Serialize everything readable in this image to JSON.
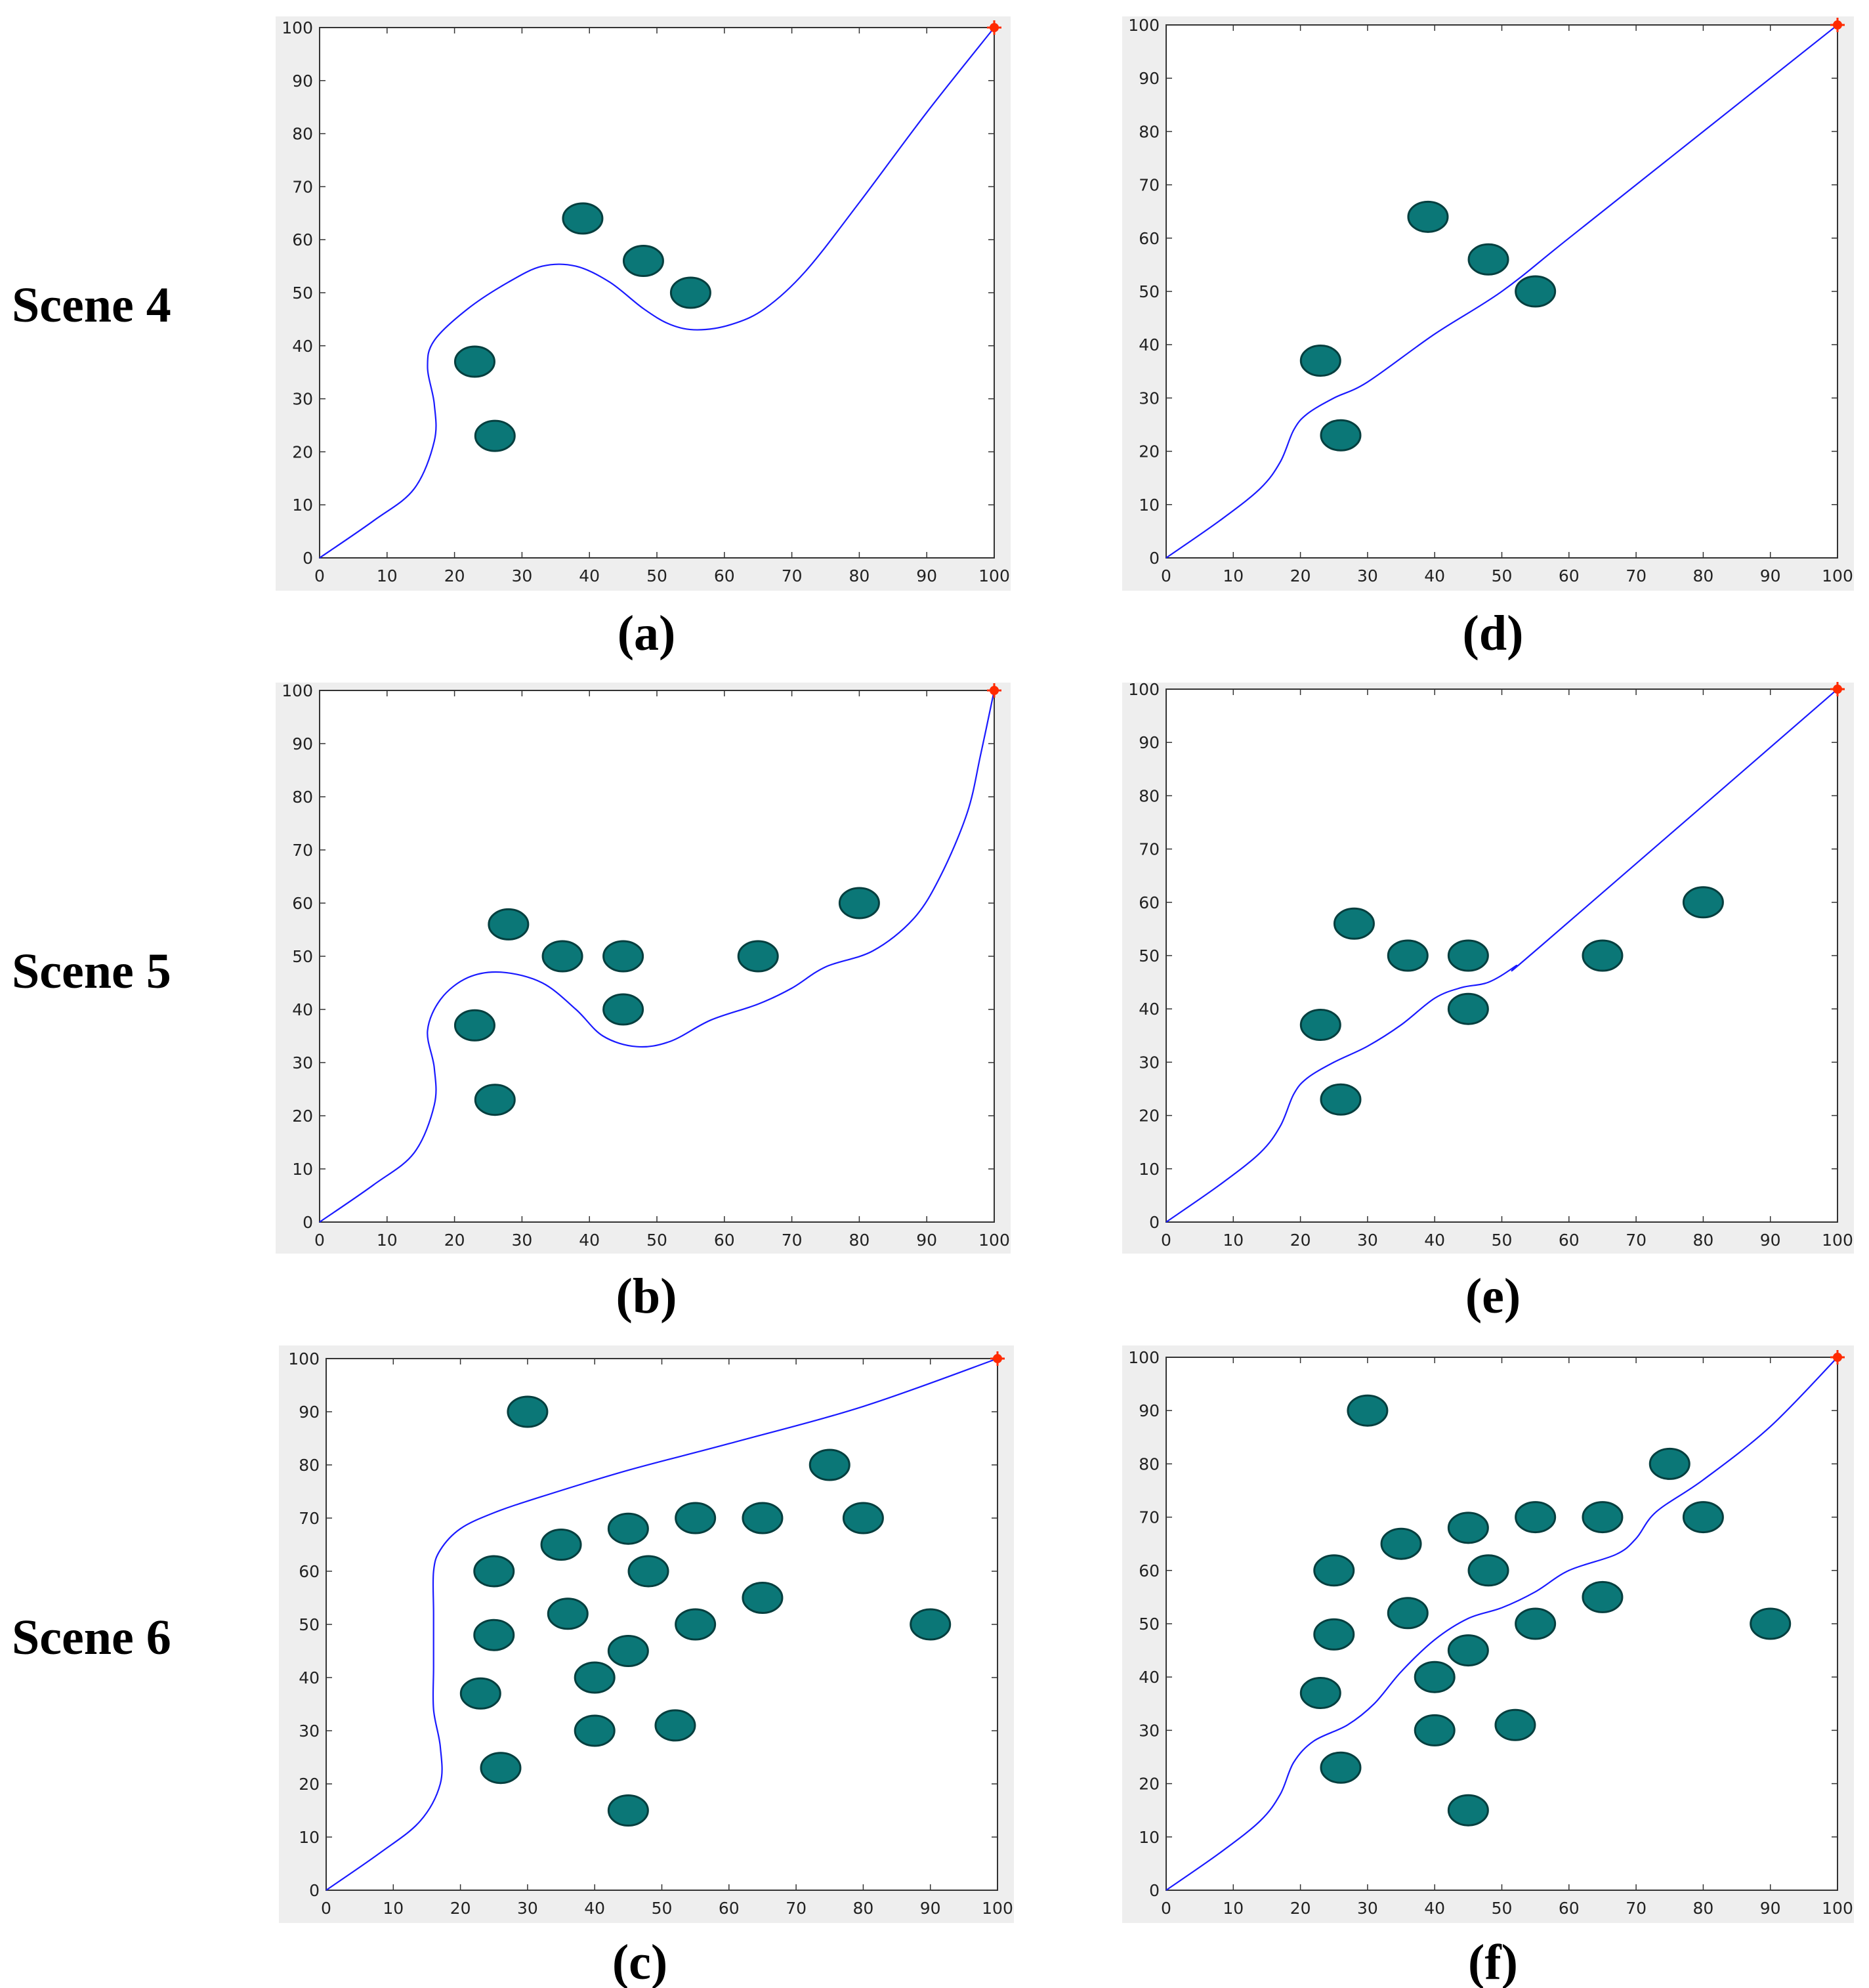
{
  "scene_labels": [
    "Scene 4",
    "Scene 5",
    "Scene 6"
  ],
  "colors": {
    "obstacle": "#0b7777",
    "obstacle_edge": "#063f3f",
    "path": "#1a1aff",
    "goal": "#ff2a00",
    "frame_bg": "#eeeeee",
    "axes_bg": "#ffffff"
  },
  "chart_data": [
    {
      "type": "scatter",
      "caption": "(a)",
      "scene": "Scene 4",
      "xlim": [
        0,
        100
      ],
      "ylim": [
        0,
        100
      ],
      "xticks": [
        0,
        10,
        20,
        30,
        40,
        50,
        60,
        70,
        80,
        90,
        100
      ],
      "yticks": [
        0,
        10,
        20,
        30,
        40,
        50,
        60,
        70,
        80,
        90,
        100
      ],
      "obstacles": [
        [
          23,
          37
        ],
        [
          26,
          23
        ],
        [
          39,
          64
        ],
        [
          48,
          56
        ],
        [
          55,
          50
        ]
      ],
      "path": [
        [
          0,
          0
        ],
        [
          8,
          7
        ],
        [
          14,
          13
        ],
        [
          17,
          22
        ],
        [
          17,
          29
        ],
        [
          16,
          36
        ],
        [
          17,
          41
        ],
        [
          22,
          47
        ],
        [
          28,
          52
        ],
        [
          33,
          55
        ],
        [
          38,
          55
        ],
        [
          43,
          52
        ],
        [
          48,
          47
        ],
        [
          52,
          44
        ],
        [
          56,
          43
        ],
        [
          61,
          44
        ],
        [
          66,
          47
        ],
        [
          72,
          54
        ],
        [
          80,
          67
        ],
        [
          90,
          84
        ],
        [
          100,
          100
        ]
      ],
      "start": [
        0,
        0
      ],
      "goal": [
        100,
        100
      ]
    },
    {
      "type": "scatter",
      "caption": "(b)",
      "scene": "Scene 5",
      "xlim": [
        0,
        100
      ],
      "ylim": [
        0,
        100
      ],
      "xticks": [
        0,
        10,
        20,
        30,
        40,
        50,
        60,
        70,
        80,
        90,
        100
      ],
      "yticks": [
        0,
        10,
        20,
        30,
        40,
        50,
        60,
        70,
        80,
        90,
        100
      ],
      "obstacles": [
        [
          23,
          37
        ],
        [
          26,
          23
        ],
        [
          28,
          56
        ],
        [
          36,
          50
        ],
        [
          45,
          50
        ],
        [
          45,
          40
        ],
        [
          65,
          50
        ],
        [
          80,
          60
        ]
      ],
      "path": [
        [
          0,
          0
        ],
        [
          8,
          7
        ],
        [
          14,
          13
        ],
        [
          17,
          22
        ],
        [
          17,
          29
        ],
        [
          16,
          36
        ],
        [
          18,
          42
        ],
        [
          22,
          46
        ],
        [
          27,
          47
        ],
        [
          33,
          45
        ],
        [
          38,
          40
        ],
        [
          42,
          35
        ],
        [
          47,
          33
        ],
        [
          52,
          34
        ],
        [
          58,
          38
        ],
        [
          65,
          41
        ],
        [
          70,
          44
        ],
        [
          75,
          48
        ],
        [
          82,
          51
        ],
        [
          88,
          57
        ],
        [
          92,
          65
        ],
        [
          96,
          77
        ],
        [
          98,
          88
        ],
        [
          100,
          100
        ]
      ],
      "start": [
        0,
        0
      ],
      "goal": [
        100,
        100
      ]
    },
    {
      "type": "scatter",
      "caption": "(c)",
      "scene": "Scene 6",
      "xlim": [
        0,
        100
      ],
      "ylim": [
        0,
        100
      ],
      "xticks": [
        0,
        10,
        20,
        30,
        40,
        50,
        60,
        70,
        80,
        90,
        100
      ],
      "yticks": [
        0,
        10,
        20,
        30,
        40,
        50,
        60,
        70,
        80,
        90,
        100
      ],
      "obstacles": [
        [
          30,
          90
        ],
        [
          75,
          80
        ],
        [
          45,
          68
        ],
        [
          55,
          70
        ],
        [
          65,
          70
        ],
        [
          80,
          70
        ],
        [
          25,
          60
        ],
        [
          35,
          65
        ],
        [
          48,
          60
        ],
        [
          36,
          52
        ],
        [
          25,
          48
        ],
        [
          55,
          50
        ],
        [
          65,
          55
        ],
        [
          90,
          50
        ],
        [
          23,
          37
        ],
        [
          40,
          40
        ],
        [
          45,
          45
        ],
        [
          40,
          30
        ],
        [
          52,
          31
        ],
        [
          26,
          23
        ],
        [
          45,
          15
        ]
      ],
      "path": [
        [
          0,
          0
        ],
        [
          8,
          7
        ],
        [
          14,
          13
        ],
        [
          17,
          20
        ],
        [
          17,
          27
        ],
        [
          16,
          34
        ],
        [
          16,
          42
        ],
        [
          16,
          52
        ],
        [
          16,
          60
        ],
        [
          17,
          64
        ],
        [
          20,
          68
        ],
        [
          25,
          71
        ],
        [
          32,
          74
        ],
        [
          45,
          79
        ],
        [
          60,
          84
        ],
        [
          80,
          91
        ],
        [
          100,
          100
        ]
      ],
      "start": [
        0,
        0
      ],
      "goal": [
        100,
        100
      ]
    },
    {
      "type": "scatter",
      "caption": "(d)",
      "scene": "Scene 4",
      "xlim": [
        0,
        100
      ],
      "ylim": [
        0,
        100
      ],
      "xticks": [
        0,
        10,
        20,
        30,
        40,
        50,
        60,
        70,
        80,
        90,
        100
      ],
      "yticks": [
        0,
        10,
        20,
        30,
        40,
        50,
        60,
        70,
        80,
        90,
        100
      ],
      "obstacles": [
        [
          23,
          37
        ],
        [
          26,
          23
        ],
        [
          39,
          64
        ],
        [
          48,
          56
        ],
        [
          55,
          50
        ]
      ],
      "path": [
        [
          0,
          0
        ],
        [
          8,
          7
        ],
        [
          14,
          13
        ],
        [
          17,
          18
        ],
        [
          19,
          24
        ],
        [
          21,
          27
        ],
        [
          25,
          30
        ],
        [
          30,
          33
        ],
        [
          40,
          42
        ],
        [
          50,
          50
        ],
        [
          60,
          60
        ],
        [
          80,
          80
        ],
        [
          100,
          100
        ]
      ],
      "start": [
        0,
        0
      ],
      "goal": [
        100,
        100
      ]
    },
    {
      "type": "scatter",
      "caption": "(e)",
      "scene": "Scene 5",
      "xlim": [
        0,
        100
      ],
      "ylim": [
        0,
        100
      ],
      "xticks": [
        0,
        10,
        20,
        30,
        40,
        50,
        60,
        70,
        80,
        90,
        100
      ],
      "yticks": [
        0,
        10,
        20,
        30,
        40,
        50,
        60,
        70,
        80,
        90,
        100
      ],
      "obstacles": [
        [
          23,
          37
        ],
        [
          26,
          23
        ],
        [
          28,
          56
        ],
        [
          36,
          50
        ],
        [
          45,
          50
        ],
        [
          45,
          40
        ],
        [
          65,
          50
        ],
        [
          80,
          60
        ]
      ],
      "path": [
        [
          0,
          0
        ],
        [
          8,
          7
        ],
        [
          14,
          13
        ],
        [
          17,
          18
        ],
        [
          19,
          24
        ],
        [
          21,
          27
        ],
        [
          25,
          30
        ],
        [
          30,
          33
        ],
        [
          35,
          37
        ],
        [
          40,
          42
        ],
        [
          44,
          44
        ],
        [
          48,
          45
        ],
        [
          52,
          48
        ],
        [
          56,
          52
        ],
        [
          100,
          100
        ]
      ],
      "start": [
        0,
        0
      ],
      "goal": [
        100,
        100
      ]
    },
    {
      "type": "scatter",
      "caption": "(f)",
      "scene": "Scene 6",
      "xlim": [
        0,
        100
      ],
      "ylim": [
        0,
        100
      ],
      "xticks": [
        0,
        10,
        20,
        30,
        40,
        50,
        60,
        70,
        80,
        90,
        100
      ],
      "yticks": [
        0,
        10,
        20,
        30,
        40,
        50,
        60,
        70,
        80,
        90,
        100
      ],
      "obstacles": [
        [
          30,
          90
        ],
        [
          75,
          80
        ],
        [
          45,
          68
        ],
        [
          55,
          70
        ],
        [
          65,
          70
        ],
        [
          80,
          70
        ],
        [
          25,
          60
        ],
        [
          35,
          65
        ],
        [
          48,
          60
        ],
        [
          36,
          52
        ],
        [
          25,
          48
        ],
        [
          55,
          50
        ],
        [
          65,
          55
        ],
        [
          90,
          50
        ],
        [
          23,
          37
        ],
        [
          40,
          40
        ],
        [
          45,
          45
        ],
        [
          40,
          30
        ],
        [
          52,
          31
        ],
        [
          26,
          23
        ],
        [
          45,
          15
        ]
      ],
      "path": [
        [
          0,
          0
        ],
        [
          8,
          7
        ],
        [
          14,
          13
        ],
        [
          17,
          18
        ],
        [
          19,
          24
        ],
        [
          22,
          28
        ],
        [
          27,
          31
        ],
        [
          31,
          35
        ],
        [
          35,
          41
        ],
        [
          40,
          47
        ],
        [
          45,
          51
        ],
        [
          50,
          53
        ],
        [
          55,
          56
        ],
        [
          60,
          60
        ],
        [
          67,
          63
        ],
        [
          70,
          66
        ],
        [
          73,
          71
        ],
        [
          80,
          77
        ],
        [
          90,
          87
        ],
        [
          100,
          100
        ]
      ],
      "start": [
        0,
        0
      ],
      "goal": [
        100,
        100
      ]
    }
  ]
}
